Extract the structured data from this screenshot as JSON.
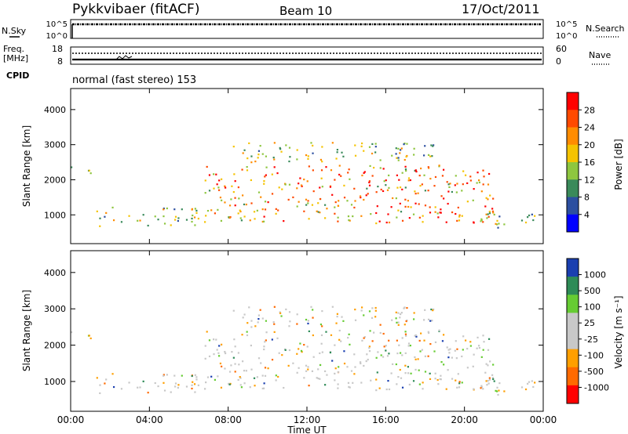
{
  "header": {
    "title": "Pykkvibaer (fitACF)",
    "beam": "Beam 10",
    "date": "17/Oct/2011"
  },
  "strip_panels": {
    "nsky_label": "N.Sky",
    "nsky_ticks": [
      "10^5",
      "10^0"
    ],
    "nsearch_label": "N.Search",
    "nsearch_ticks": [
      "10^5",
      "10^0"
    ],
    "freq_label": [
      "Freq.",
      "[MHz]"
    ],
    "freq_ticks": [
      "18",
      "8"
    ],
    "nave_label": "Nave",
    "nave_ticks": [
      "60",
      "0"
    ],
    "cpid_label": "CPID",
    "cpid_value": "normal (fast stereo) 153"
  },
  "chart_data": [
    {
      "type": "heatmap",
      "title": "",
      "ylabel": "Slant Range [km]",
      "ylim": [
        180,
        4600
      ],
      "yticks": [
        1000,
        2000,
        3000,
        4000
      ],
      "colorbar": {
        "label": "Power [dB]",
        "ticks": [
          "28",
          "24",
          "20",
          "16",
          "12",
          "8",
          "4"
        ],
        "range": [
          0,
          32
        ]
      },
      "echo_regions": [
        {
          "t0": 0.0,
          "t1": 1.2,
          "r0": 2150,
          "r1": 2400
        },
        {
          "t0": 1.0,
          "t1": 6.8,
          "r0": 700,
          "r1": 1250
        },
        {
          "t0": 6.8,
          "t1": 21.5,
          "r0": 780,
          "r1": 2450
        },
        {
          "t0": 21.0,
          "t1": 24.0,
          "r0": 650,
          "r1": 1150
        },
        {
          "t0": 8.0,
          "t1": 18.5,
          "r0": 2500,
          "r1": 3100
        }
      ]
    },
    {
      "type": "heatmap",
      "title": "",
      "ylabel": "Slant Range [km]",
      "ylim": [
        180,
        4600
      ],
      "yticks": [
        1000,
        2000,
        3000,
        4000
      ],
      "colorbar": {
        "label": "Velocity [m s⁻¹]",
        "ticks": [
          "1000",
          "500",
          "100",
          "25",
          "-25",
          "-100",
          "-500",
          "-1000"
        ]
      },
      "xlabel": "Time UT",
      "xticks": [
        "00:00",
        "04:00",
        "08:00",
        "12:00",
        "16:00",
        "20:00",
        "00:00"
      ],
      "xlim": [
        0,
        24
      ]
    }
  ],
  "colors": {
    "power_scale": [
      "#0000ff",
      "#2c4fa0",
      "#3a8a5a",
      "#8ec63f",
      "#f5c300",
      "#ff8c00",
      "#ff4a00",
      "#ff0000"
    ],
    "velocity_scale": [
      "#ff0000",
      "#ff6a00",
      "#ff9f00",
      "#c8c8c8",
      "#c8c8c8",
      "#66cc33",
      "#2e8b57",
      "#1a3fb0"
    ]
  }
}
